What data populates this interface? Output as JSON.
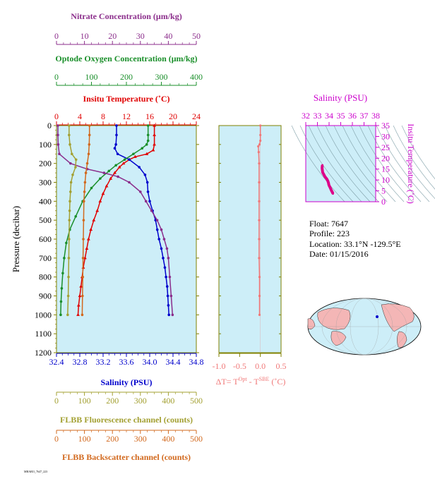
{
  "colors": {
    "nitrate": "#8b2d8b",
    "oxygen": "#1a8f2a",
    "temperature": "#e00000",
    "salinity": "#0000cc",
    "fluorescence": "#a3a032",
    "backscatter": "#d2691e",
    "delta_t": "#f07878",
    "ts_axis": "#cc00cc",
    "ts_trace": "#dd0088",
    "plot_bg": "#cdeef8",
    "axis_frame": "#808000",
    "land": "#f4b6b6"
  },
  "info": {
    "float": "Float:  7647",
    "profile": "Profile:  223",
    "location": "Location:  33.1°N  -129.5°E",
    "date": "Date:  01/15/2016"
  },
  "footer_code": "MBARI1_7647_223",
  "chart_data": [
    {
      "type": "line",
      "name": "main-profile",
      "ylabel": "Pressure (decibar)",
      "ylim": [
        1200,
        0
      ],
      "yticks": [
        0,
        100,
        200,
        300,
        400,
        500,
        600,
        700,
        800,
        900,
        1000,
        1100,
        1200
      ],
      "axes": {
        "nitrate": {
          "label": "Nitrate Concentration (μm/kg)",
          "range": [
            0,
            50
          ],
          "ticks": [
            0,
            10,
            20,
            30,
            40,
            50
          ]
        },
        "oxygen": {
          "label": "Optode Oxygen Concentration (μm/kg)",
          "range": [
            0,
            400
          ],
          "ticks": [
            0,
            100,
            200,
            300,
            400
          ]
        },
        "temperature": {
          "label": "Insitu Temperature (˚C)",
          "range": [
            0,
            24
          ],
          "ticks": [
            0,
            4,
            8,
            12,
            16,
            20,
            24
          ]
        },
        "salinity": {
          "label": "Salinity (PSU)",
          "range": [
            32.4,
            34.8
          ],
          "ticks": [
            "32.4",
            "32.8",
            "33.2",
            "33.6",
            "34.0",
            "34.4",
            "34.8"
          ]
        },
        "fluorescence": {
          "label": "FLBB Fluorescence channel (counts)",
          "range": [
            0,
            500
          ],
          "ticks": [
            0,
            100,
            200,
            300,
            400,
            500
          ]
        },
        "backscatter": {
          "label": "FLBB Backscatter channel (counts)",
          "range": [
            0,
            500
          ],
          "ticks": [
            0,
            100,
            200,
            300,
            400,
            500
          ]
        }
      },
      "series": [
        {
          "key": "temperature",
          "marker": "triangle",
          "points": [
            [
              16.8,
              0
            ],
            [
              16.8,
              50
            ],
            [
              16.8,
              100
            ],
            [
              16.6,
              130
            ],
            [
              15.5,
              150
            ],
            [
              13.5,
              165
            ],
            [
              12.5,
              180
            ],
            [
              11.5,
              200
            ],
            [
              10.8,
              220
            ],
            [
              10,
              250
            ],
            [
              9.3,
              280
            ],
            [
              8.6,
              320
            ],
            [
              8.0,
              360
            ],
            [
              7.5,
              400
            ],
            [
              7.0,
              450
            ],
            [
              6.4,
              500
            ],
            [
              5.9,
              550
            ],
            [
              5.5,
              600
            ],
            [
              5.2,
              650
            ],
            [
              4.9,
              700
            ],
            [
              4.6,
              750
            ],
            [
              4.4,
              800
            ],
            [
              4.2,
              850
            ],
            [
              4.0,
              900
            ],
            [
              3.8,
              950
            ],
            [
              3.7,
              1000
            ]
          ]
        },
        {
          "key": "salinity",
          "marker": "circle",
          "points": [
            [
              33.43,
              0
            ],
            [
              33.43,
              50
            ],
            [
              33.42,
              100
            ],
            [
              33.4,
              120
            ],
            [
              33.45,
              150
            ],
            [
              33.65,
              180
            ],
            [
              33.82,
              220
            ],
            [
              33.92,
              260
            ],
            [
              33.96,
              300
            ],
            [
              33.97,
              350
            ],
            [
              34.0,
              400
            ],
            [
              34.05,
              450
            ],
            [
              34.1,
              500
            ],
            [
              34.13,
              550
            ],
            [
              34.16,
              600
            ],
            [
              34.2,
              650
            ],
            [
              34.23,
              700
            ],
            [
              34.26,
              750
            ],
            [
              34.28,
              800
            ],
            [
              34.3,
              850
            ],
            [
              34.31,
              900
            ],
            [
              34.32,
              950
            ],
            [
              34.33,
              1000
            ]
          ]
        },
        {
          "key": "oxygen",
          "marker": "circle",
          "points": [
            [
              262,
              0
            ],
            [
              262,
              50
            ],
            [
              262,
              80
            ],
            [
              258,
              100
            ],
            [
              245,
              120
            ],
            [
              220,
              150
            ],
            [
              195,
              180
            ],
            [
              170,
              210
            ],
            [
              150,
              240
            ],
            [
              125,
              280
            ],
            [
              100,
              330
            ],
            [
              75,
              400
            ],
            [
              55,
              480
            ],
            [
              38,
              550
            ],
            [
              28,
              620
            ],
            [
              22,
              700
            ],
            [
              18,
              780
            ],
            [
              15,
              860
            ],
            [
              13,
              930
            ],
            [
              12,
              1000
            ]
          ]
        },
        {
          "key": "nitrate",
          "marker": "circle",
          "points": [
            [
              0.5,
              0
            ],
            [
              0.5,
              50
            ],
            [
              0.6,
              100
            ],
            [
              1.0,
              150
            ],
            [
              5,
              200
            ],
            [
              11,
              230
            ],
            [
              17,
              250
            ],
            [
              22,
              270
            ],
            [
              26,
              300
            ],
            [
              30,
              350
            ],
            [
              32,
              400
            ],
            [
              34,
              450
            ],
            [
              36,
              500
            ],
            [
              37.5,
              550
            ],
            [
              38.5,
              600
            ],
            [
              39.5,
              650
            ],
            [
              40,
              700
            ],
            [
              40.5,
              800
            ],
            [
              41,
              900
            ],
            [
              41.5,
              1000
            ]
          ]
        },
        {
          "key": "fluorescence",
          "marker": "circle",
          "points": [
            [
              45,
              0
            ],
            [
              45,
              50
            ],
            [
              48,
              100
            ],
            [
              55,
              150
            ],
            [
              70,
              180
            ],
            [
              68,
              220
            ],
            [
              58,
              260
            ],
            [
              52,
              300
            ],
            [
              50,
              350
            ],
            [
              48,
              400
            ],
            [
              47,
              450
            ],
            [
              46,
              500
            ],
            [
              45,
              600
            ],
            [
              44,
              700
            ],
            [
              43,
              800
            ],
            [
              42,
              900
            ],
            [
              40,
              1000
            ]
          ]
        },
        {
          "key": "backscatter",
          "marker": "circle",
          "points": [
            [
              118,
              0
            ],
            [
              118,
              50
            ],
            [
              117,
              100
            ],
            [
              115,
              150
            ],
            [
              110,
              200
            ],
            [
              105,
              250
            ],
            [
              102,
              300
            ],
            [
              100,
              350
            ],
            [
              98,
              400
            ],
            [
              97,
              500
            ],
            [
              96,
              600
            ],
            [
              95,
              700
            ],
            [
              94,
              800
            ],
            [
              93,
              900
            ],
            [
              92,
              1000
            ]
          ]
        }
      ]
    },
    {
      "type": "line",
      "name": "delta-t",
      "xlabel": "ΔT= T",
      "xlabel_sup1": "Opt",
      "xlabel_mid": " - T",
      "xlabel_sup2": "SBE",
      "xlabel_unit": "  (˚C)",
      "xlim": [
        -1.0,
        0.5
      ],
      "xticks": [
        "-1.0",
        "-0.5",
        "0.0",
        "0.5"
      ],
      "ylim": [
        1200,
        0
      ],
      "points": [
        [
          0.0,
          0
        ],
        [
          0.0,
          50
        ],
        [
          0.0,
          80
        ],
        [
          -0.02,
          100
        ],
        [
          -0.05,
          110
        ],
        [
          -0.04,
          140
        ],
        [
          -0.03,
          200
        ],
        [
          -0.03,
          300
        ],
        [
          -0.03,
          400
        ],
        [
          -0.03,
          500
        ],
        [
          -0.03,
          600
        ],
        [
          -0.03,
          700
        ],
        [
          -0.02,
          800
        ],
        [
          -0.02,
          900
        ],
        [
          -0.02,
          1000
        ]
      ]
    },
    {
      "type": "scatter",
      "name": "ts-diagram",
      "title": "Salinity (PSU)",
      "ylabel": "Insitu Temperature (˚C)",
      "xlim": [
        32,
        38
      ],
      "ylim": [
        0,
        35
      ],
      "xticks": [
        "32",
        "33",
        "34",
        "35",
        "36",
        "37",
        "38"
      ],
      "yticks": [
        "0",
        "5",
        "10",
        "15",
        "20",
        "25",
        "30",
        "35"
      ],
      "points": [
        [
          33.43,
          16.8
        ],
        [
          33.42,
          16.6
        ],
        [
          33.4,
          15.5
        ],
        [
          33.45,
          13.5
        ],
        [
          33.55,
          12.5
        ],
        [
          33.65,
          11.5
        ],
        [
          33.8,
          10.5
        ],
        [
          33.9,
          9.5
        ],
        [
          33.95,
          8.6
        ],
        [
          33.97,
          8.0
        ],
        [
          34.0,
          7.5
        ],
        [
          34.05,
          7.0
        ],
        [
          34.1,
          6.4
        ],
        [
          34.2,
          5.2
        ],
        [
          34.3,
          4.2
        ],
        [
          34.33,
          3.7
        ]
      ]
    }
  ]
}
